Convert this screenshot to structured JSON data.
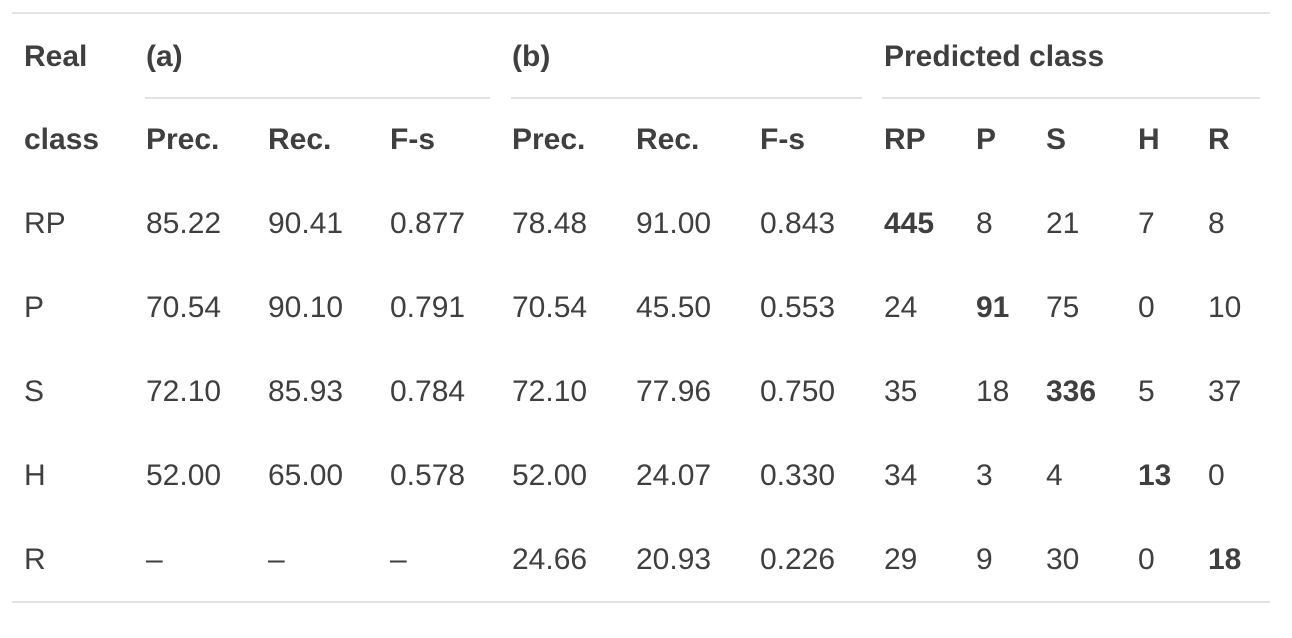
{
  "header": {
    "real_class_line1": "Real",
    "real_class_line2": "class",
    "group_a": "(a)",
    "group_b": "(b)",
    "group_predicted": "Predicted class",
    "columns": [
      "Prec.",
      "Rec.",
      "F-s",
      "Prec.",
      "Rec.",
      "F-s",
      "RP",
      "P",
      "S",
      "H",
      "R"
    ]
  },
  "rows": [
    {
      "label": "RP",
      "cells": [
        "85.22",
        "90.41",
        "0.877",
        "78.48",
        "91.00",
        "0.843",
        "445",
        "8",
        "21",
        "7",
        "8"
      ]
    },
    {
      "label": "P",
      "cells": [
        "70.54",
        "90.10",
        "0.791",
        "70.54",
        "45.50",
        "0.553",
        "24",
        "91",
        "75",
        "0",
        "10"
      ]
    },
    {
      "label": "S",
      "cells": [
        "72.10",
        "85.93",
        "0.784",
        "72.10",
        "77.96",
        "0.750",
        "35",
        "18",
        "336",
        "5",
        "37"
      ]
    },
    {
      "label": "H",
      "cells": [
        "52.00",
        "65.00",
        "0.578",
        "52.00",
        "24.07",
        "0.330",
        "34",
        "3",
        "4",
        "13",
        "0"
      ]
    },
    {
      "label": "R",
      "cells": [
        "–",
        "–",
        "–",
        "24.66",
        "20.93",
        "0.226",
        "29",
        "9",
        "30",
        "0",
        "18"
      ]
    }
  ]
}
